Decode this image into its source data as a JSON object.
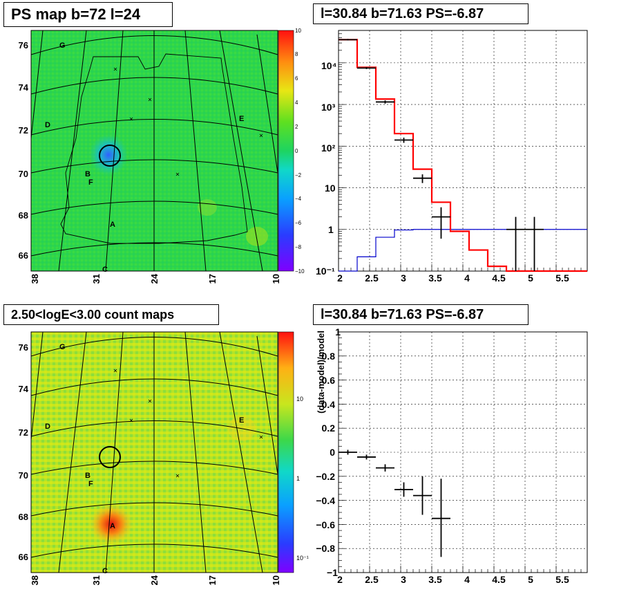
{
  "panels": {
    "top_left_title": "PS map b=72 l=24",
    "top_right_title": "l=30.84 b=71.63 PS=-6.87",
    "bottom_left_title": "2.50<logE<3.00 count maps",
    "bottom_right_title": "l=30.84 b=71.63 PS=-6.87"
  },
  "colors": {
    "model_red": "#ff0000",
    "background_blue": "#0000cc",
    "data_black": "#000000",
    "map_green": "#2ed64a",
    "map_green_low": "#1ed48e",
    "count_yellow": "#c8e61e"
  },
  "chart_data": [
    {
      "type": "heatmap",
      "title": "PS map b=72 l=24",
      "x_tick_labels": [
        "38",
        "31",
        "24",
        "17",
        "10"
      ],
      "y_tick_labels": [
        "76",
        "74",
        "72",
        "70",
        "68",
        "66"
      ],
      "xlim": [
        38,
        10
      ],
      "ylim": [
        65.3,
        76.6
      ],
      "colorbar": {
        "range": [
          -10,
          10
        ],
        "tick_labels": [
          "10",
          "8",
          "6",
          "4",
          "2",
          "0",
          "−2",
          "−4",
          "−6",
          "−8",
          "−10"
        ]
      },
      "source_labels": [
        {
          "name": "G",
          "l": 33.5,
          "b": 76.2
        },
        {
          "name": "D",
          "l": 34.8,
          "b": 72.2
        },
        {
          "name": "E",
          "l": 14.2,
          "b": 72.5
        },
        {
          "name": "B",
          "l": 31.5,
          "b": 70.0
        },
        {
          "name": "F",
          "l": 31.0,
          "b": 69.6
        },
        {
          "name": "A",
          "l": 29.5,
          "b": 67.6
        },
        {
          "name": "C",
          "l": 30.6,
          "b": 65.4
        }
      ],
      "circled_source": {
        "l": 30.84,
        "b": 71.63
      }
    },
    {
      "type": "line",
      "title": "l=30.84 b=71.63 PS=-6.87",
      "yscale": "log",
      "xlim": [
        2,
        6
      ],
      "ylim": [
        0.1,
        60000
      ],
      "x_tick_labels": [
        "2",
        "2.5",
        "3",
        "3.5",
        "4",
        "4.5",
        "5",
        "5.5"
      ],
      "y_tick_labels": [
        "10⁴",
        "10³",
        "10²",
        "10",
        "1",
        "10⁻¹"
      ],
      "series": [
        {
          "style": "step",
          "bin_edges": [
            2.0,
            2.3,
            2.6,
            2.9,
            3.2,
            3.5,
            3.8,
            4.1,
            4.4,
            4.7,
            5.0,
            5.3,
            5.6,
            6.0
          ],
          "values": [
            36000,
            7800,
            1350,
            200,
            28,
            4.5,
            0.9,
            0.32,
            0.13,
            0.1,
            0.1,
            0.1,
            0.1
          ]
        },
        {
          "style": "step",
          "bin_edges": [
            2.0,
            2.3,
            2.6,
            2.9,
            3.2,
            3.5,
            3.8,
            4.1,
            4.4,
            4.7,
            5.0,
            5.3,
            5.6,
            6.0
          ],
          "values": [
            0.05,
            0.22,
            0.65,
            0.97,
            1.0,
            1.0,
            1.0,
            1.0,
            1.0,
            1.0,
            1.0,
            1.0,
            1.0
          ]
        },
        {
          "style": "errorbar",
          "x": [
            2.15,
            2.45,
            2.75,
            3.05,
            3.35,
            3.65,
            4.85,
            5.15
          ],
          "xerr": [
            0.15,
            0.15,
            0.15,
            0.15,
            0.15,
            0.15,
            0.15,
            0.15
          ],
          "y": [
            36000,
            7500,
            1150,
            140,
            17,
            2.0,
            1.0,
            1.0
          ],
          "ylo": [
            34500,
            7100,
            1050,
            120,
            13,
            0.6,
            0.1,
            0.1
          ],
          "yhi": [
            37500,
            7900,
            1250,
            160,
            21,
            3.4,
            2.0,
            2.0
          ]
        }
      ]
    },
    {
      "type": "heatmap",
      "title": "2.50<logE<3.00 count maps",
      "x_tick_labels": [
        "38",
        "31",
        "24",
        "17",
        "10"
      ],
      "y_tick_labels": [
        "76",
        "74",
        "72",
        "70",
        "68",
        "66"
      ],
      "xlim": [
        38,
        10
      ],
      "ylim": [
        65.3,
        76.6
      ],
      "colorbar": {
        "scale": "log",
        "tick_labels": [
          "10",
          "1",
          "10⁻¹"
        ]
      },
      "source_labels": [
        {
          "name": "G",
          "l": 33.5,
          "b": 76.2
        },
        {
          "name": "D",
          "l": 34.8,
          "b": 72.2
        },
        {
          "name": "E",
          "l": 14.2,
          "b": 72.5
        },
        {
          "name": "B",
          "l": 31.5,
          "b": 70.0
        },
        {
          "name": "F",
          "l": 31.0,
          "b": 69.6
        },
        {
          "name": "A",
          "l": 29.5,
          "b": 67.6
        },
        {
          "name": "C",
          "l": 30.6,
          "b": 65.4
        }
      ],
      "circled_source": {
        "l": 30.84,
        "b": 71.63
      },
      "bright_source": {
        "l": 29.5,
        "b": 67.6
      }
    },
    {
      "type": "scatter",
      "title": "l=30.84 b=71.63 PS=-6.87",
      "ylabel": "(data-model)/model",
      "xlim": [
        2,
        6
      ],
      "ylim": [
        -1,
        1
      ],
      "x_tick_labels": [
        "2",
        "2.5",
        "3",
        "3.5",
        "4",
        "4.5",
        "5",
        "5.5"
      ],
      "y_tick_labels": [
        "1",
        "0.8",
        "0.6",
        "0.4",
        "0.2",
        "0",
        "−0.2",
        "−0.4",
        "−0.6",
        "−0.8",
        "−1"
      ],
      "series": [
        {
          "style": "errorbar",
          "x": [
            2.15,
            2.45,
            2.75,
            3.05,
            3.35,
            3.65
          ],
          "xerr": [
            0.15,
            0.15,
            0.15,
            0.15,
            0.15,
            0.15
          ],
          "y": [
            0.0,
            -0.04,
            -0.13,
            -0.31,
            -0.36,
            -0.55
          ],
          "ylo": [
            -0.02,
            -0.06,
            -0.16,
            -0.37,
            -0.52,
            -0.87
          ],
          "yhi": [
            0.02,
            -0.02,
            -0.1,
            -0.25,
            -0.2,
            -0.22
          ]
        }
      ]
    }
  ]
}
